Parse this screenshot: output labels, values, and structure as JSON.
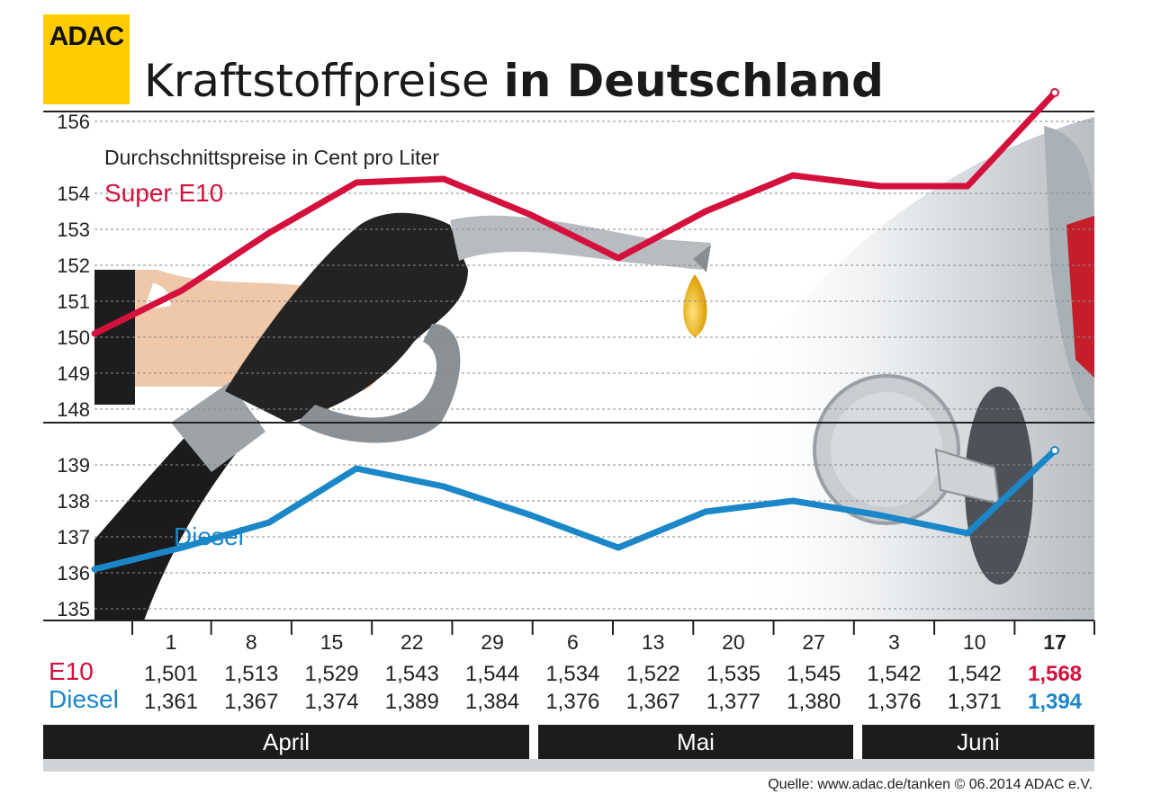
{
  "header": {
    "logo_text": "ADAC",
    "title_light": "Kraftstoffpreise ",
    "title_bold": "in Deutschland"
  },
  "footer": {
    "source": "Quelle: www.adac.de/tanken   © 06.2014  ADAC e.V."
  },
  "colors": {
    "e10": "#d4103c",
    "diesel": "#1b86c8",
    "logo": "#ffcc00",
    "month_bar": "#1c1c1c"
  },
  "chart_data": {
    "type": "line",
    "subtitle": "Durchschnittspreise in Cent pro Liter",
    "x": [
      "1",
      "8",
      "15",
      "22",
      "29",
      "6",
      "13",
      "20",
      "27",
      "3",
      "10",
      "17"
    ],
    "months": [
      {
        "label": "April",
        "span": [
          0,
          4
        ]
      },
      {
        "label": "Mai",
        "span": [
          5,
          8
        ]
      },
      {
        "label": "Juni",
        "span": [
          9,
          11
        ]
      }
    ],
    "series": [
      {
        "name": "Super E10",
        "row_label": "E10",
        "values": [
          150.1,
          151.3,
          152.9,
          154.3,
          154.4,
          153.4,
          152.2,
          153.5,
          154.5,
          154.2,
          154.2,
          156.8
        ],
        "labels": [
          "1,501",
          "1,513",
          "1,529",
          "1,543",
          "1,544",
          "1,534",
          "1,522",
          "1,535",
          "1,545",
          "1,542",
          "1,542",
          "1,568"
        ]
      },
      {
        "name": "Diesel",
        "row_label": "Diesel",
        "values": [
          136.1,
          136.7,
          137.4,
          138.9,
          138.4,
          137.6,
          136.7,
          137.7,
          138.0,
          137.6,
          137.1,
          139.4
        ],
        "labels": [
          "1,361",
          "1,367",
          "1,374",
          "1,389",
          "1,384",
          "1,376",
          "1,367",
          "1,377",
          "1,380",
          "1,376",
          "1,371",
          "1,394"
        ]
      }
    ],
    "axes": {
      "e10_ticks": [
        148,
        149,
        150,
        151,
        152,
        153,
        154,
        156
      ],
      "diesel_ticks": [
        135,
        136,
        137,
        138,
        139
      ],
      "e10_range": [
        148,
        156
      ],
      "diesel_range": [
        135,
        139
      ]
    },
    "grid": true,
    "highlight_last": true
  }
}
